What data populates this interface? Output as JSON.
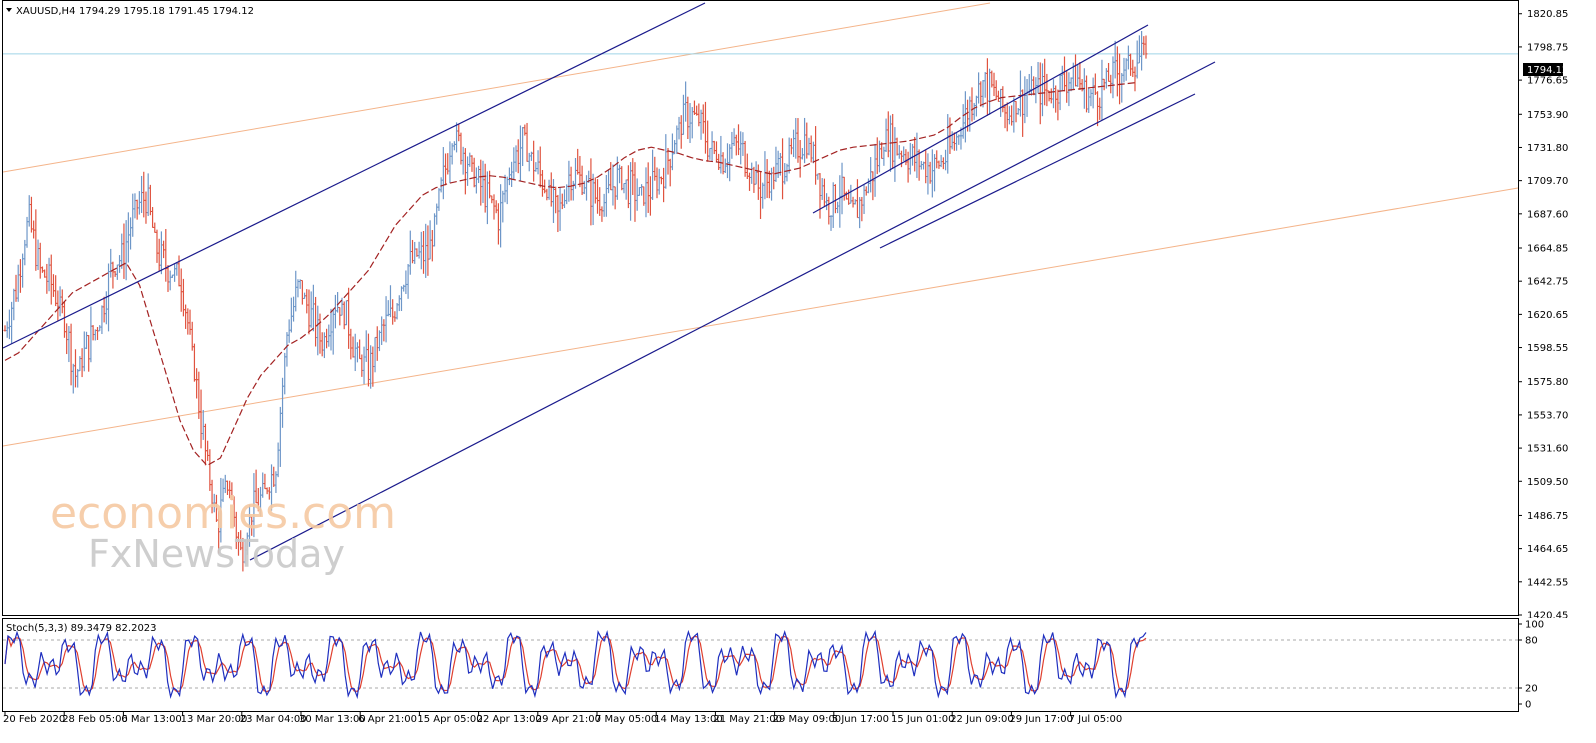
{
  "header": {
    "symbol": "XAUUSD,H4",
    "ohlc": "1794.29 1795.18 1791.45 1794.12"
  },
  "current_price_label": "1794.12",
  "watermark": {
    "line1": "economies.com",
    "line2": "FxNewsToday"
  },
  "colors": {
    "bull": "#6d96c8",
    "bear": "#e0533f",
    "ma": "#a32222",
    "channel": "#1a1a8c",
    "fib_line": "#f4b48a",
    "price_line": "#9fd4e6",
    "stoch_main": "#1f2fbf",
    "stoch_signal": "#e0402f",
    "watermark_orange": "#f6c9a2",
    "watermark_gray": "#c9c9c9"
  },
  "stoch_panel": {
    "label": "Stoch(5,3,3) 89.3479 82.2023",
    "levels": [
      {
        "value": 100,
        "label": "100"
      },
      {
        "value": 80,
        "label": "80"
      },
      {
        "value": 20,
        "label": "20"
      },
      {
        "value": 0,
        "label": "0"
      }
    ]
  },
  "chart_data": {
    "type": "candlestick-ohlc-bars",
    "symbol": "XAUUSD",
    "timeframe": "H4",
    "y_ticks": [
      "1820.85",
      "1798.75",
      "1776.65",
      "1753.90",
      "1731.80",
      "1709.70",
      "1687.60",
      "1664.85",
      "1642.75",
      "1620.65",
      "1598.55",
      "1575.80",
      "1553.70",
      "1531.60",
      "1509.50",
      "1486.75",
      "1464.65",
      "1442.55",
      "1420.45"
    ],
    "ylim": [
      1420.45,
      1830
    ],
    "x_tick_labels": [
      "20 Feb 2020",
      "28 Feb 05:00",
      "6 Mar 13:00",
      "13 Mar 20:00",
      "23 Mar 04:00",
      "30 Mar 13:00",
      "6 Apr 21:00",
      "15 Apr 05:00",
      "22 Apr 13:00",
      "29 Apr 21:00",
      "7 May 05:00",
      "14 May 13:00",
      "21 May 21:00",
      "29 May 09:00",
      "5 Jun 17:00",
      "15 Jun 01:00",
      "22 Jun 09:00",
      "29 Jun 17:00",
      "7 Jul 05:00"
    ],
    "bars_per_tick": 44,
    "current_price": 1794.12,
    "close_path": [
      1610,
      1640,
      1685,
      1650,
      1640,
      1620,
      1580,
      1600,
      1615,
      1650,
      1660,
      1690,
      1700,
      1660,
      1650,
      1645,
      1590,
      1530,
      1480,
      1510,
      1460,
      1490,
      1500,
      1520,
      1610,
      1640,
      1620,
      1600,
      1630,
      1620,
      1590,
      1585,
      1610,
      1620,
      1650,
      1660,
      1660,
      1700,
      1740,
      1730,
      1710,
      1700,
      1685,
      1720,
      1735,
      1720,
      1705,
      1685,
      1715,
      1710,
      1700,
      1695,
      1712,
      1705,
      1700,
      1705,
      1715,
      1740,
      1755,
      1750,
      1730,
      1725,
      1735,
      1725,
      1705,
      1710,
      1720,
      1730,
      1738,
      1720,
      1690,
      1705,
      1685,
      1700,
      1720,
      1740,
      1730,
      1725,
      1720,
      1718,
      1725,
      1740,
      1760,
      1775,
      1770,
      1755,
      1760,
      1770,
      1770,
      1768,
      1775,
      1780,
      1765,
      1770,
      1778,
      1785,
      1790,
      1794.12
    ],
    "ma_path": [
      1590,
      1595,
      1605,
      1615,
      1625,
      1635,
      1640,
      1645,
      1650,
      1655,
      1640,
      1610,
      1580,
      1550,
      1530,
      1520,
      1525,
      1545,
      1565,
      1580,
      1590,
      1600,
      1605,
      1612,
      1620,
      1630,
      1640,
      1650,
      1665,
      1680,
      1690,
      1700,
      1705,
      1708,
      1710,
      1712,
      1713,
      1712,
      1710,
      1708,
      1706,
      1705,
      1706,
      1708,
      1712,
      1718,
      1725,
      1730,
      1732,
      1730,
      1728,
      1725,
      1723,
      1722,
      1720,
      1718,
      1716,
      1714,
      1716,
      1718,
      1722,
      1726,
      1730,
      1732,
      1733,
      1734,
      1735,
      1736,
      1738,
      1740,
      1745,
      1752,
      1758,
      1762,
      1765,
      1766,
      1767,
      1768,
      1769,
      1770,
      1771,
      1772,
      1773,
      1774,
      1775
    ],
    "channel_lines": [
      {
        "name": "upper-long",
        "from": [
          "20 Feb 2020",
          1598
        ],
        "to": [
          "15 Apr 05:00",
          1747
        ]
      },
      {
        "name": "lower-long",
        "from": [
          "23 Mar 04:00",
          1452
        ],
        "to": [
          "7 Jul 05:00",
          1790
        ]
      },
      {
        "name": "upper-short",
        "from": [
          "29 May 09:00",
          1712
        ],
        "to": [
          "7 Jul 05:00",
          1822
        ]
      },
      {
        "name": "lower-short",
        "from": [
          "5 Jun 17:00",
          1668
        ],
        "to": [
          "7 Jul 05:00",
          1778
        ]
      }
    ],
    "stochastic": {
      "k": 89.3479,
      "d": 82.2023,
      "params": "5,3,3"
    }
  }
}
